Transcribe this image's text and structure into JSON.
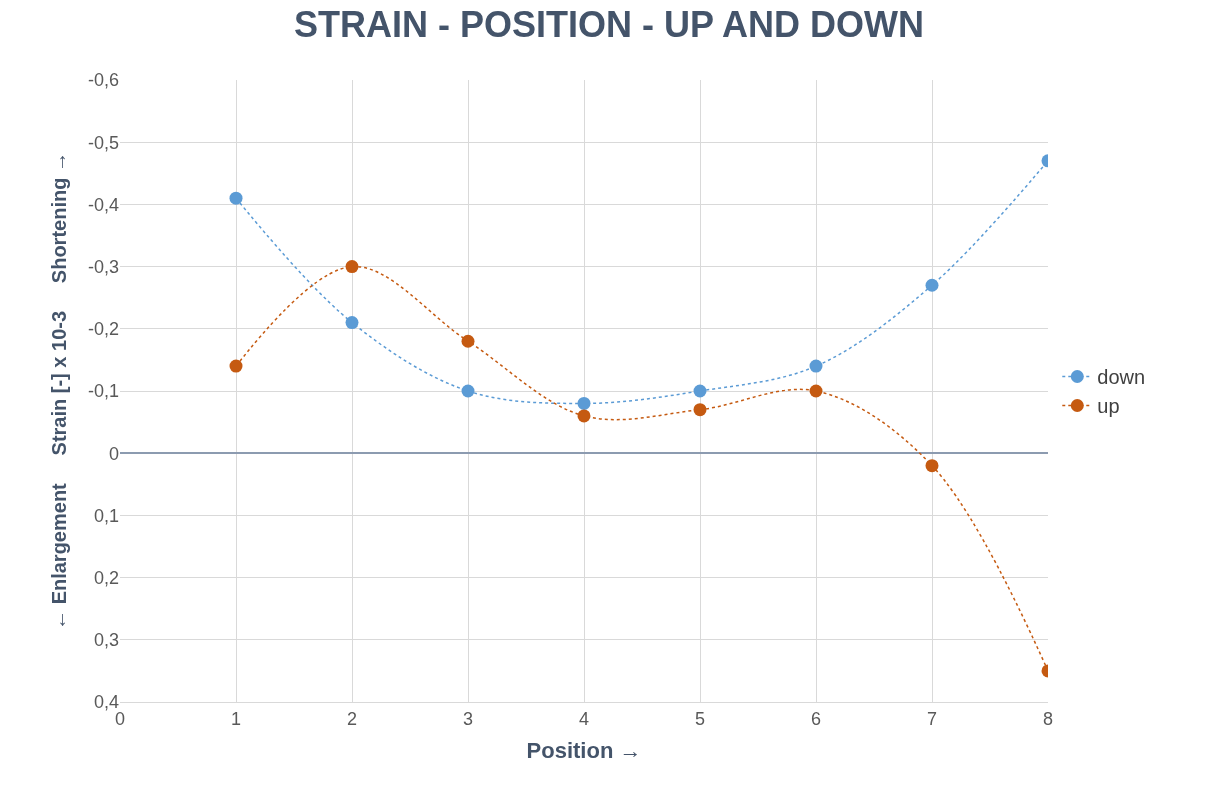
{
  "chart_data": {
    "type": "line",
    "title": "STRAIN - POSITION - UP AND DOWN",
    "xlabel": "Position →",
    "ylabel": "← Enlargement     Strain [-] x 10-3     Shortening →",
    "x": [
      1,
      2,
      3,
      4,
      5,
      6,
      7,
      8
    ],
    "series": [
      {
        "name": "down",
        "color": "#5b9bd5",
        "values": [
          -0.41,
          -0.21,
          -0.1,
          -0.08,
          -0.1,
          -0.14,
          -0.27,
          -0.47
        ]
      },
      {
        "name": "up",
        "color": "#c55a11",
        "values": [
          -0.14,
          -0.3,
          -0.18,
          -0.06,
          -0.07,
          -0.1,
          0.02,
          0.35
        ]
      }
    ],
    "xlim": [
      0,
      8
    ],
    "xticks": [
      0,
      1,
      2,
      3,
      4,
      5,
      6,
      7,
      8
    ],
    "ylim": [
      0.4,
      -0.6
    ],
    "yticks": [
      {
        "value": -0.6,
        "label": "-0,6"
      },
      {
        "value": -0.5,
        "label": "-0,5"
      },
      {
        "value": -0.4,
        "label": "-0,4"
      },
      {
        "value": -0.3,
        "label": "-0,3"
      },
      {
        "value": -0.2,
        "label": "-0,2"
      },
      {
        "value": -0.1,
        "label": "-0,1"
      },
      {
        "value": 0,
        "label": "0"
      },
      {
        "value": 0.1,
        "label": "0,1"
      },
      {
        "value": 0.2,
        "label": "0,2"
      },
      {
        "value": 0.3,
        "label": "0,3"
      },
      {
        "value": 0.4,
        "label": "0,4"
      }
    ],
    "grid": true,
    "legend": "right",
    "marker": "circle",
    "line_style": "dotted"
  }
}
